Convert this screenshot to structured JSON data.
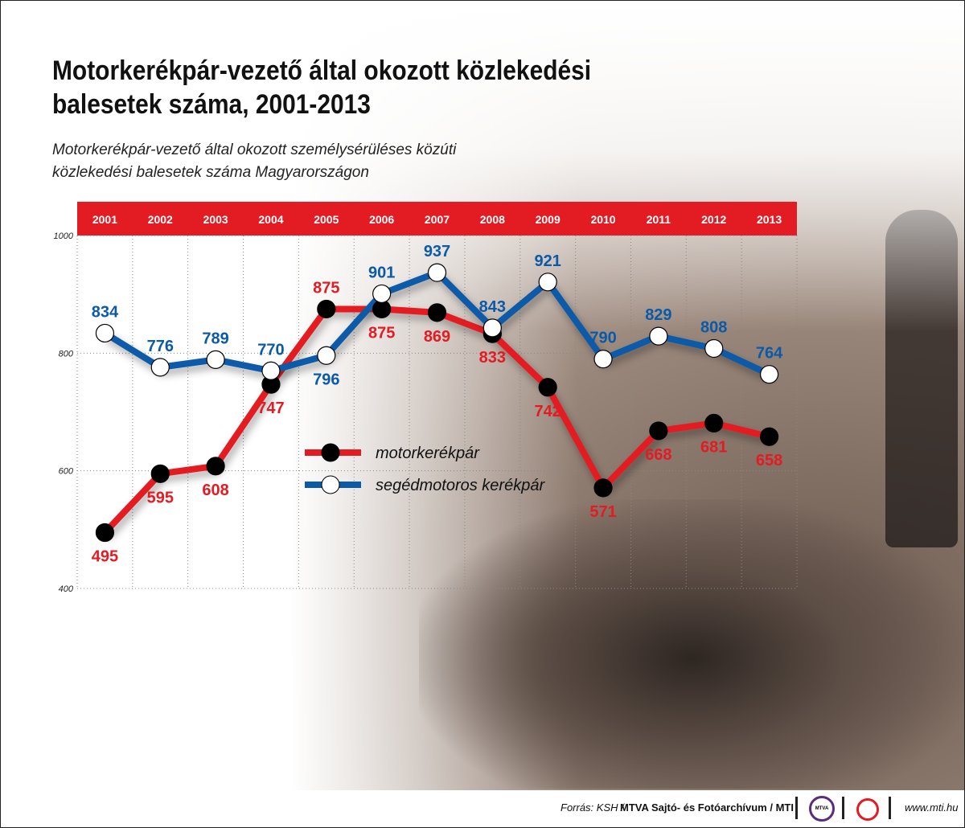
{
  "title": "Motorkerékpár-vezető által okozott közlekedési balesetek száma, 2001-2013",
  "subtitle_line1": "Motorkerékpár-vezető által okozott személysérüléses közúti",
  "subtitle_line2": "közlekedési balesetek száma Magyarországon",
  "footer": {
    "source": "Forrás: KSH / ",
    "credit": "MTVA Sajtó- és Fotóarchívum / MTI",
    "logo1": "MTVA",
    "url": "www.mti.hu"
  },
  "colors": {
    "red": "#e31b23",
    "blue": "#0a5aa8"
  },
  "chart_data": {
    "type": "line",
    "categories": [
      "2001",
      "2002",
      "2003",
      "2004",
      "2005",
      "2006",
      "2007",
      "2008",
      "2009",
      "2010",
      "2011",
      "2012",
      "2013"
    ],
    "yticks": [
      400,
      600,
      800,
      1000
    ],
    "ylim": [
      400,
      1000
    ],
    "series": [
      {
        "name": "motorkerékpár",
        "color": "#e31b23",
        "marker": "black",
        "values": [
          495,
          595,
          608,
          747,
          875,
          875,
          869,
          833,
          742,
          571,
          668,
          681,
          658
        ]
      },
      {
        "name": "segédmotoros kerékpár",
        "color": "#0a5aa8",
        "marker": "white",
        "values": [
          834,
          776,
          789,
          770,
          796,
          901,
          937,
          843,
          921,
          790,
          829,
          808,
          764
        ]
      }
    ],
    "legend": "center"
  }
}
